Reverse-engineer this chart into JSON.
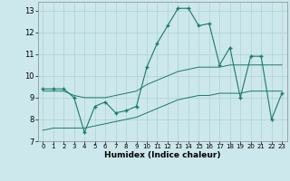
{
  "xlabel": "Humidex (Indice chaleur)",
  "ylabel": "",
  "background_color": "#cce8ec",
  "grid_color": "#aed0d4",
  "line_color": "#1a7a6a",
  "xlim": [
    -0.5,
    23.5
  ],
  "ylim": [
    7,
    13.4
  ],
  "xticks": [
    0,
    1,
    2,
    3,
    4,
    5,
    6,
    7,
    8,
    9,
    10,
    11,
    12,
    13,
    14,
    15,
    16,
    17,
    18,
    19,
    20,
    21,
    22,
    23
  ],
  "yticks": [
    7,
    8,
    9,
    10,
    11,
    12,
    13
  ],
  "line1_x": [
    0,
    1,
    2,
    3,
    4,
    5,
    6,
    7,
    8,
    9,
    10,
    11,
    12,
    13,
    14,
    15,
    16,
    17,
    18,
    19,
    20,
    21,
    22,
    23
  ],
  "line1_y": [
    9.4,
    9.4,
    9.4,
    9.0,
    7.4,
    8.6,
    8.8,
    8.3,
    8.4,
    8.6,
    10.4,
    11.5,
    12.3,
    13.1,
    13.1,
    12.3,
    12.4,
    10.5,
    11.3,
    9.0,
    10.9,
    10.9,
    8.0,
    9.2
  ],
  "line2_x": [
    0,
    1,
    2,
    3,
    4,
    5,
    6,
    7,
    8,
    9,
    10,
    11,
    12,
    13,
    14,
    15,
    16,
    17,
    18,
    19,
    20,
    21,
    22,
    23
  ],
  "line2_y": [
    9.3,
    9.3,
    9.3,
    9.1,
    9.0,
    9.0,
    9.0,
    9.1,
    9.2,
    9.3,
    9.6,
    9.8,
    10.0,
    10.2,
    10.3,
    10.4,
    10.4,
    10.4,
    10.5,
    10.5,
    10.5,
    10.5,
    10.5,
    10.5
  ],
  "line3_x": [
    0,
    1,
    2,
    3,
    4,
    5,
    6,
    7,
    8,
    9,
    10,
    11,
    12,
    13,
    14,
    15,
    16,
    17,
    18,
    19,
    20,
    21,
    22,
    23
  ],
  "line3_y": [
    7.5,
    7.6,
    7.6,
    7.6,
    7.6,
    7.7,
    7.8,
    7.9,
    8.0,
    8.1,
    8.3,
    8.5,
    8.7,
    8.9,
    9.0,
    9.1,
    9.1,
    9.2,
    9.2,
    9.2,
    9.3,
    9.3,
    9.3,
    9.3
  ]
}
